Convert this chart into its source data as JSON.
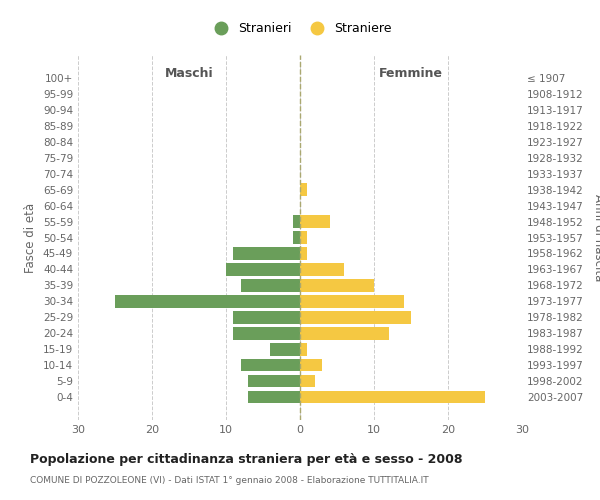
{
  "age_groups": [
    "0-4",
    "5-9",
    "10-14",
    "15-19",
    "20-24",
    "25-29",
    "30-34",
    "35-39",
    "40-44",
    "45-49",
    "50-54",
    "55-59",
    "60-64",
    "65-69",
    "70-74",
    "75-79",
    "80-84",
    "85-89",
    "90-94",
    "95-99",
    "100+"
  ],
  "birth_years": [
    "2003-2007",
    "1998-2002",
    "1993-1997",
    "1988-1992",
    "1983-1987",
    "1978-1982",
    "1973-1977",
    "1968-1972",
    "1963-1967",
    "1958-1962",
    "1953-1957",
    "1948-1952",
    "1943-1947",
    "1938-1942",
    "1933-1937",
    "1928-1932",
    "1923-1927",
    "1918-1922",
    "1913-1917",
    "1908-1912",
    "≤ 1907"
  ],
  "males": [
    7,
    7,
    8,
    4,
    9,
    9,
    25,
    8,
    10,
    9,
    1,
    1,
    0,
    0,
    0,
    0,
    0,
    0,
    0,
    0,
    0
  ],
  "females": [
    25,
    2,
    3,
    1,
    12,
    15,
    14,
    10,
    6,
    1,
    1,
    4,
    0,
    1,
    0,
    0,
    0,
    0,
    0,
    0,
    0
  ],
  "male_color": "#6a9e5a",
  "female_color": "#f5c842",
  "title": "Popolazione per cittadinanza straniera per età e sesso - 2008",
  "subtitle": "COMUNE DI POZZOLEONE (VI) - Dati ISTAT 1° gennaio 2008 - Elaborazione TUTTITALIA.IT",
  "ylabel_left": "Fasce di età",
  "ylabel_right": "Anni di nascita",
  "xlabel_maschi": "Maschi",
  "xlabel_femmine": "Femmine",
  "legend_male": "Stranieri",
  "legend_female": "Straniere",
  "xlim": 30,
  "background_color": "#ffffff",
  "grid_color": "#cccccc"
}
